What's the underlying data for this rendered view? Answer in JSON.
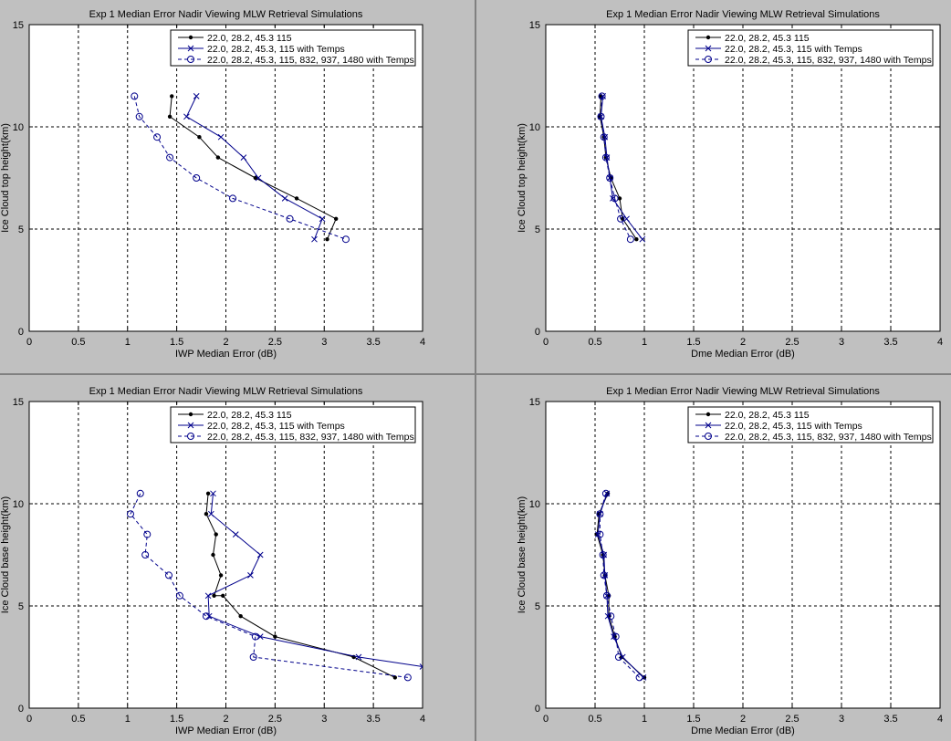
{
  "window": {
    "background": "#c0c0c0",
    "divider_color": "#808080"
  },
  "colors": {
    "series1": "#000000",
    "series2": "#00008b",
    "series3": "#00008b",
    "grid": "#000000",
    "axes_bg": "#ffffff"
  },
  "chart_data": [
    {
      "type": "line",
      "title": "Exp 1 Median Error Nadir Viewing MLW Retrieval Simulations",
      "xlabel": "IWP Median Error (dB)",
      "ylabel": "Ice Cloud top height(km)",
      "xlim": [
        0,
        4
      ],
      "ylim": [
        0,
        15
      ],
      "xticks": [
        "0",
        "0.5",
        "1",
        "1.5",
        "2",
        "2.5",
        "3",
        "3.5",
        "4"
      ],
      "yticks": [
        "0",
        "5",
        "10",
        "15"
      ],
      "grid": true,
      "legend_position": "top-right",
      "series": [
        {
          "name": "22.0, 28.2, 45.3 115",
          "style": "solid",
          "marker": "dot",
          "x": [
            1.45,
            1.43,
            1.73,
            1.92,
            2.3,
            2.72,
            3.12,
            3.03
          ],
          "y": [
            11.5,
            10.5,
            9.5,
            8.5,
            7.5,
            6.5,
            5.5,
            4.5
          ]
        },
        {
          "name": "22.0, 28.2, 45.3, 115 with Temps",
          "style": "solid",
          "marker": "x",
          "x": [
            1.7,
            1.6,
            1.95,
            2.18,
            2.33,
            2.6,
            2.98,
            2.9
          ],
          "y": [
            11.5,
            10.5,
            9.5,
            8.5,
            7.5,
            6.5,
            5.5,
            4.5
          ]
        },
        {
          "name": "22.0, 28.2, 45.3, 115, 832, 937, 1480 with Temps",
          "style": "dashed",
          "marker": "circle",
          "x": [
            1.07,
            1.12,
            1.3,
            1.43,
            1.7,
            2.07,
            2.65,
            3.22
          ],
          "y": [
            11.5,
            10.5,
            9.5,
            8.5,
            7.5,
            6.5,
            5.5,
            4.5
          ]
        }
      ]
    },
    {
      "type": "line",
      "title": "Exp 1 Median Error Nadir Viewing MLW Retrieval Simulations",
      "xlabel": "Dme Median Error (dB)",
      "ylabel": "Ice Cloud top height(km)",
      "xlim": [
        0,
        4
      ],
      "ylim": [
        0,
        15
      ],
      "xticks": [
        "0",
        "0.5",
        "1",
        "1.5",
        "2",
        "2.5",
        "3",
        "3.5",
        "4"
      ],
      "yticks": [
        "0",
        "5",
        "10",
        "15"
      ],
      "grid": true,
      "legend_position": "top-right",
      "series": [
        {
          "name": "22.0, 28.2, 45.3 115",
          "style": "solid",
          "marker": "dot",
          "x": [
            0.56,
            0.55,
            0.59,
            0.61,
            0.66,
            0.75,
            0.78,
            0.92
          ],
          "y": [
            11.5,
            10.5,
            9.5,
            8.5,
            7.5,
            6.5,
            5.5,
            4.5
          ]
        },
        {
          "name": "22.0, 28.2, 45.3, 115 with Temps",
          "style": "solid",
          "marker": "x",
          "x": [
            0.58,
            0.56,
            0.6,
            0.62,
            0.65,
            0.68,
            0.82,
            0.98
          ],
          "y": [
            11.5,
            10.5,
            9.5,
            8.5,
            7.5,
            6.5,
            5.5,
            4.5
          ]
        },
        {
          "name": "22.0, 28.2, 45.3, 115, 832, 937, 1480 with Temps",
          "style": "dashed",
          "marker": "circle",
          "x": [
            0.57,
            0.56,
            0.59,
            0.61,
            0.65,
            0.7,
            0.76,
            0.86
          ],
          "y": [
            11.5,
            10.5,
            9.5,
            8.5,
            7.5,
            6.5,
            5.5,
            4.5
          ]
        }
      ]
    },
    {
      "type": "line",
      "title": "Exp 1 Median Error Nadir Viewing MLW Retrieval Simulations",
      "xlabel": "IWP Median Error (dB)",
      "ylabel": "Ice Cloud base height(km)",
      "xlim": [
        0,
        4
      ],
      "ylim": [
        0,
        15
      ],
      "xticks": [
        "0",
        "0.5",
        "1",
        "1.5",
        "2",
        "2.5",
        "3",
        "3.5",
        "4"
      ],
      "yticks": [
        "0",
        "5",
        "10",
        "15"
      ],
      "grid": true,
      "legend_position": "top-right",
      "series": [
        {
          "name": "22.0, 28.2, 45.3 115",
          "style": "solid",
          "marker": "dot",
          "x": [
            1.82,
            1.8,
            1.9,
            1.87,
            1.95,
            1.88,
            1.97,
            2.15,
            2.5,
            3.3,
            3.72
          ],
          "y": [
            10.5,
            9.5,
            8.5,
            7.5,
            6.5,
            5.5,
            5.5,
            4.5,
            3.5,
            2.5,
            1.5
          ]
        },
        {
          "name": "22.0, 28.2, 45.3, 115 with Temps",
          "style": "solid",
          "marker": "x",
          "x": [
            1.87,
            1.85,
            2.1,
            2.35,
            2.25,
            1.82,
            1.83,
            2.35,
            3.35,
            4.0
          ],
          "y": [
            10.5,
            9.5,
            8.5,
            7.5,
            6.5,
            5.5,
            4.5,
            3.5,
            2.5,
            2.03
          ]
        },
        {
          "name": "22.0, 28.2, 45.3, 115, 832, 937, 1480 with Temps",
          "style": "dashed",
          "marker": "circle",
          "x": [
            1.13,
            1.03,
            1.2,
            1.18,
            1.42,
            1.53,
            1.8,
            2.3,
            2.28,
            3.85
          ],
          "y": [
            10.5,
            9.5,
            8.5,
            7.5,
            6.5,
            5.5,
            4.5,
            3.5,
            2.5,
            1.5
          ]
        }
      ]
    },
    {
      "type": "line",
      "title": "Exp 1 Median Error Nadir Viewing MLW Retrieval Simulations",
      "xlabel": "Dme Median Error (dB)",
      "ylabel": "Ice Cloud base height(km)",
      "xlim": [
        0,
        4
      ],
      "ylim": [
        0,
        15
      ],
      "xticks": [
        "0",
        "0.5",
        "1",
        "1.5",
        "2",
        "2.5",
        "3",
        "3.5",
        "4"
      ],
      "yticks": [
        "0",
        "5",
        "10",
        "15"
      ],
      "grid": true,
      "legend_position": "top-right",
      "series": [
        {
          "name": "22.0, 28.2, 45.3 115",
          "style": "solid",
          "marker": "dot",
          "x": [
            0.63,
            0.54,
            0.52,
            0.58,
            0.6,
            0.64,
            0.64,
            0.7,
            0.77,
            1.0
          ],
          "y": [
            10.5,
            9.5,
            8.5,
            7.5,
            6.5,
            5.5,
            4.5,
            3.5,
            2.5,
            1.5
          ]
        },
        {
          "name": "22.0, 28.2, 45.3, 115 with Temps",
          "style": "solid",
          "marker": "x",
          "x": [
            0.62,
            0.55,
            0.53,
            0.59,
            0.6,
            0.62,
            0.63,
            0.69,
            0.78,
            0.99
          ],
          "y": [
            10.5,
            9.5,
            8.5,
            7.5,
            6.5,
            5.5,
            4.5,
            3.5,
            2.5,
            1.5
          ]
        },
        {
          "name": "22.0, 28.2, 45.3, 115, 832, 937, 1480 with Temps",
          "style": "dashed",
          "marker": "circle",
          "x": [
            0.61,
            0.55,
            0.55,
            0.58,
            0.59,
            0.62,
            0.66,
            0.71,
            0.74,
            0.95
          ],
          "y": [
            10.5,
            9.5,
            8.5,
            7.5,
            6.5,
            5.5,
            4.5,
            3.5,
            2.5,
            1.5
          ]
        }
      ]
    }
  ]
}
